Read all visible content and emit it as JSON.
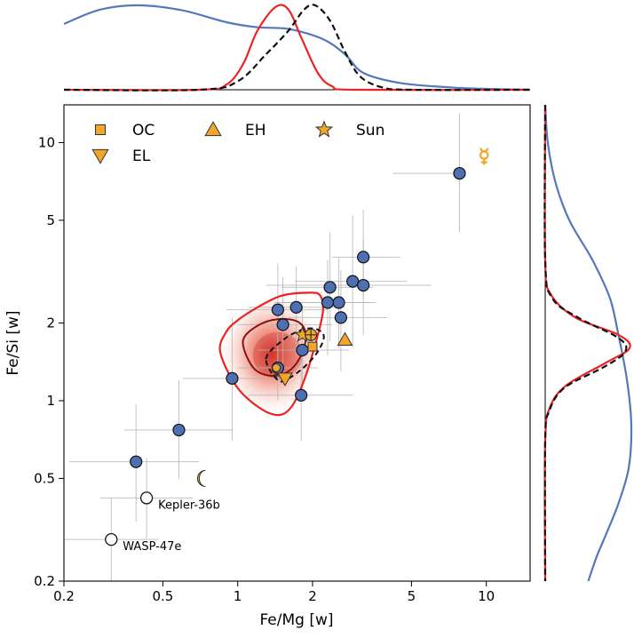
{
  "colors": {
    "blue_points": "#4e6fb2",
    "blue_kde": "#5577bb",
    "red": "#ee2222",
    "dark_red": "#8b1010",
    "orange": "#f3a629",
    "error_bars": "#b5b5b5"
  },
  "chart_data": {
    "type": "scatter",
    "xscale": "log",
    "yscale": "log",
    "xlim": [
      0.2,
      15
    ],
    "ylim": [
      0.2,
      14
    ],
    "xlabel": "Fe/Mg [w]",
    "ylabel": "Fe/Si [w]",
    "xticks": [
      {
        "v": 0.2,
        "t": "0.2"
      },
      {
        "v": 0.5,
        "t": "0.5"
      },
      {
        "v": 1,
        "t": "1"
      },
      {
        "v": 2,
        "t": "2"
      },
      {
        "v": 5,
        "t": "5"
      },
      {
        "v": 10,
        "t": "10"
      }
    ],
    "yticks": [
      {
        "v": 0.2,
        "t": "0.2"
      },
      {
        "v": 0.5,
        "t": "0.5"
      },
      {
        "v": 1,
        "t": "1"
      },
      {
        "v": 2,
        "t": "2"
      },
      {
        "v": 5,
        "t": "5"
      },
      {
        "v": 10,
        "t": "10"
      }
    ],
    "legend": {
      "placement": "top-left",
      "entries": [
        {
          "label": "OC",
          "marker": "square"
        },
        {
          "label": "EH",
          "marker": "triangle-up"
        },
        {
          "label": "Sun",
          "marker": "star"
        },
        {
          "label": "EL",
          "marker": "triangle-down"
        }
      ]
    },
    "planets": [
      {
        "x": 7.8,
        "y": 7.6,
        "xerr": [
          4.2,
          8
        ],
        "yerr": [
          4.5,
          13
        ]
      },
      {
        "x": 3.2,
        "y": 3.6,
        "xerr": [
          2.4,
          4.5
        ],
        "yerr": [
          2.5,
          5.5
        ]
      },
      {
        "x": 2.9,
        "y": 2.9,
        "xerr": [
          1.7,
          4.8
        ],
        "yerr": [
          1.6,
          5.2
        ]
      },
      {
        "x": 3.2,
        "y": 2.8,
        "xerr": [
          1.3,
          6
        ],
        "yerr": [
          1.8,
          4.2
        ]
      },
      {
        "x": 2.35,
        "y": 2.75,
        "xerr": [
          1.5,
          3.5
        ],
        "yerr": [
          1.7,
          4.5
        ]
      },
      {
        "x": 2.55,
        "y": 2.4,
        "xerr": [
          1.5,
          3.6
        ],
        "yerr": [
          1.6,
          3.6
        ]
      },
      {
        "x": 2.3,
        "y": 2.4,
        "xerr": [
          1.4,
          3.4
        ],
        "yerr": [
          1.5,
          3.5
        ]
      },
      {
        "x": 2.6,
        "y": 2.1,
        "xerr": [
          1.6,
          4
        ],
        "yerr": [
          1.3,
          3.2
        ]
      },
      {
        "x": 1.45,
        "y": 2.25,
        "xerr": [
          0.9,
          2.3
        ],
        "yerr": [
          1.4,
          3.4
        ]
      },
      {
        "x": 1.72,
        "y": 2.3,
        "xerr": [
          1.1,
          2.7
        ],
        "yerr": [
          1.5,
          3.3
        ]
      },
      {
        "x": 1.52,
        "y": 1.97,
        "xerr": [
          1.0,
          2.4
        ],
        "yerr": [
          1.3,
          3.0
        ]
      },
      {
        "x": 1.82,
        "y": 1.57,
        "xerr": [
          1.2,
          2.8
        ],
        "yerr": [
          1.1,
          2.3
        ]
      },
      {
        "x": 0.95,
        "y": 1.22,
        "xerr": [
          0.6,
          1.5
        ],
        "yerr": [
          0.7,
          2.1
        ]
      },
      {
        "x": 1.8,
        "y": 1.05,
        "xerr": [
          1.1,
          2.9
        ],
        "yerr": [
          0.7,
          1.6
        ]
      },
      {
        "x": 0.58,
        "y": 0.77,
        "xerr": [
          0.35,
          0.95
        ],
        "yerr": [
          0.5,
          1.2
        ]
      },
      {
        "x": 0.39,
        "y": 0.58,
        "xerr": [
          0.21,
          0.7
        ],
        "yerr": [
          0.34,
          0.97
        ]
      },
      {
        "x": 1.45,
        "y": 1.34,
        "xerr": [
          1.0,
          2.1
        ],
        "yerr": [
          1.0,
          1.8
        ]
      }
    ],
    "labeled_planets": [
      {
        "name": "Kepler-36b",
        "x": 0.43,
        "y": 0.42,
        "xerr": [
          0.28,
          0.66
        ],
        "yerr": [
          0.29,
          0.6
        ]
      },
      {
        "name": "WASP-47e",
        "x": 0.31,
        "y": 0.29,
        "xerr": [
          0.2,
          0.48
        ],
        "yerr": [
          0.2,
          0.42
        ]
      }
    ],
    "reference_points": [
      {
        "label": "OC",
        "marker": "square",
        "x": 2.0,
        "y": 1.62
      },
      {
        "label": "EH",
        "marker": "triangle-up",
        "x": 2.7,
        "y": 1.72
      },
      {
        "label": "EL",
        "marker": "triangle-down",
        "x": 1.55,
        "y": 1.22
      },
      {
        "label": "Sun",
        "marker": "star",
        "x": 1.82,
        "y": 1.8
      },
      {
        "label": "Mercury",
        "marker": "mercury-symbol",
        "x": 9.8,
        "y": 8.8
      },
      {
        "label": "Moon",
        "marker": "moon-symbol",
        "x": 0.73,
        "y": 0.5
      },
      {
        "label": "Earth",
        "marker": "earth-symbol",
        "x": 1.97,
        "y": 1.8
      },
      {
        "label": "Venus",
        "marker": "venus-symbol",
        "x": 1.43,
        "y": 1.32
      }
    ],
    "contours": {
      "density_center": {
        "x": 1.45,
        "y": 1.5
      },
      "outer_red": [
        [
          0.85,
          1.55
        ],
        [
          0.9,
          1.85
        ],
        [
          1.0,
          2.05
        ],
        [
          1.2,
          2.3
        ],
        [
          1.5,
          2.55
        ],
        [
          1.95,
          2.62
        ],
        [
          2.15,
          2.55
        ],
        [
          2.2,
          2.2
        ],
        [
          2.05,
          1.65
        ],
        [
          1.85,
          1.2
        ],
        [
          1.65,
          0.95
        ],
        [
          1.45,
          0.88
        ],
        [
          1.2,
          0.95
        ],
        [
          0.98,
          1.15
        ]
      ],
      "inner_dark_red": [
        [
          1.05,
          1.7
        ],
        [
          1.2,
          1.95
        ],
        [
          1.45,
          2.07
        ],
        [
          1.75,
          2.02
        ],
        [
          1.88,
          1.8
        ],
        [
          1.8,
          1.5
        ],
        [
          1.6,
          1.3
        ],
        [
          1.35,
          1.25
        ],
        [
          1.15,
          1.35
        ]
      ],
      "dashed_black": [
        [
          1.3,
          1.45
        ],
        [
          1.5,
          1.7
        ],
        [
          1.78,
          1.87
        ],
        [
          2.05,
          1.9
        ],
        [
          2.22,
          1.78
        ],
        [
          2.1,
          1.55
        ],
        [
          1.85,
          1.35
        ],
        [
          1.6,
          1.22
        ],
        [
          1.45,
          1.2
        ]
      ]
    },
    "top_kde": {
      "blue": [
        [
          0.2,
          0.78
        ],
        [
          0.28,
          0.95
        ],
        [
          0.4,
          1.0
        ],
        [
          0.6,
          0.94
        ],
        [
          0.9,
          0.8
        ],
        [
          1.2,
          0.74
        ],
        [
          1.6,
          0.72
        ],
        [
          2.2,
          0.6
        ],
        [
          2.7,
          0.42
        ],
        [
          3.2,
          0.2
        ],
        [
          4.5,
          0.08
        ],
        [
          7,
          0.03
        ],
        [
          10,
          0.01
        ],
        [
          15,
          0.0
        ]
      ],
      "red": [
        [
          0.2,
          0.0
        ],
        [
          0.7,
          0.0
        ],
        [
          0.9,
          0.06
        ],
        [
          1.05,
          0.3
        ],
        [
          1.2,
          0.7
        ],
        [
          1.42,
          0.98
        ],
        [
          1.6,
          0.95
        ],
        [
          1.8,
          0.62
        ],
        [
          2.1,
          0.2
        ],
        [
          2.4,
          0.04
        ],
        [
          3,
          0.0
        ],
        [
          15,
          0.0
        ]
      ],
      "dashed_black": [
        [
          0.2,
          0.0
        ],
        [
          0.7,
          0.0
        ],
        [
          1.0,
          0.1
        ],
        [
          1.3,
          0.42
        ],
        [
          1.6,
          0.7
        ],
        [
          1.85,
          0.95
        ],
        [
          2.05,
          1.0
        ],
        [
          2.35,
          0.82
        ],
        [
          2.7,
          0.45
        ],
        [
          3.1,
          0.16
        ],
        [
          3.8,
          0.03
        ],
        [
          5,
          0.0
        ],
        [
          15,
          0.0
        ]
      ]
    },
    "right_kde": {
      "blue": [
        [
          14,
          0.0
        ],
        [
          10,
          0.03
        ],
        [
          7,
          0.12
        ],
        [
          5,
          0.28
        ],
        [
          3.5,
          0.55
        ],
        [
          2.5,
          0.75
        ],
        [
          1.8,
          0.85
        ],
        [
          1.2,
          0.95
        ],
        [
          0.8,
          1.0
        ],
        [
          0.55,
          0.97
        ],
        [
          0.4,
          0.85
        ],
        [
          0.3,
          0.7
        ],
        [
          0.25,
          0.6
        ],
        [
          0.2,
          0.5
        ]
      ],
      "red": [
        [
          14,
          0.0
        ],
        [
          3.5,
          0.0
        ],
        [
          2.6,
          0.06
        ],
        [
          2.1,
          0.35
        ],
        [
          1.8,
          0.85
        ],
        [
          1.6,
          0.98
        ],
        [
          1.4,
          0.7
        ],
        [
          1.15,
          0.25
        ],
        [
          0.95,
          0.06
        ],
        [
          0.7,
          0.0
        ],
        [
          0.2,
          0.0
        ]
      ],
      "dashed_black": [
        [
          14,
          0.0
        ],
        [
          3.5,
          0.0
        ],
        [
          2.5,
          0.08
        ],
        [
          2.1,
          0.38
        ],
        [
          1.75,
          0.85
        ],
        [
          1.55,
          0.93
        ],
        [
          1.35,
          0.68
        ],
        [
          1.12,
          0.22
        ],
        [
          0.9,
          0.04
        ],
        [
          0.7,
          0.0
        ],
        [
          0.2,
          0.0
        ]
      ]
    }
  }
}
